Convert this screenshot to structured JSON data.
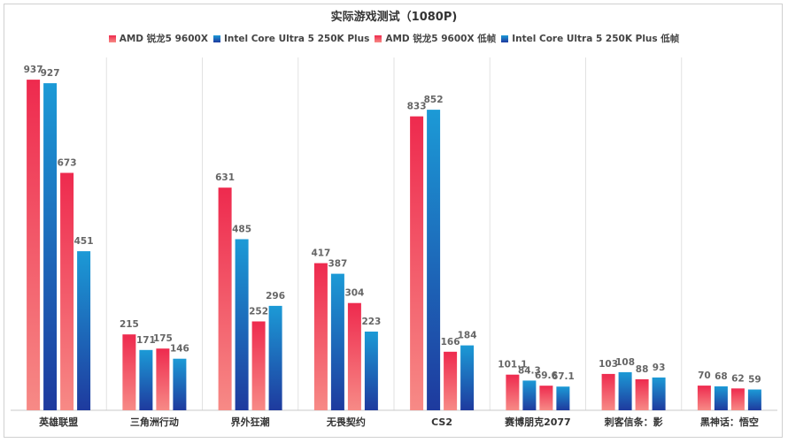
{
  "chart_data": {
    "type": "bar",
    "title": "实际游戏测试（1080P)",
    "categories": [
      "英雄联盟",
      "三角洲行动",
      "界外狂潮",
      "无畏契约",
      "CS2",
      "赛博朋克2077",
      "刺客信条：影",
      "黑神话：悟空"
    ],
    "series": [
      {
        "name": "AMD 锐龙5 9600X",
        "color": "#ee2a4e",
        "color_light": "#f78a86",
        "values": [
          937,
          215,
          631,
          417,
          833,
          101.1,
          103,
          70
        ]
      },
      {
        "name": "Intel Core Ultra 5 250K Plus",
        "color": "#1e3a9e",
        "color_light": "#1c9ad6",
        "values": [
          927,
          171,
          485,
          387,
          852,
          84.3,
          108,
          68
        ]
      },
      {
        "name": "AMD 锐龙5 9600X 低帧",
        "color": "#ee2a4e",
        "color_light": "#f78a86",
        "values": [
          673,
          175,
          252,
          304,
          166,
          69.6,
          88,
          62
        ]
      },
      {
        "name": "Intel Core Ultra 5 250K Plus 低帧",
        "color": "#1e3a9e",
        "color_light": "#1c9ad6",
        "values": [
          451,
          146,
          296,
          223,
          184,
          67.1,
          93,
          59
        ]
      }
    ],
    "legend_position": "top-center",
    "ylim": [
      0,
      1000
    ],
    "grid": false
  }
}
